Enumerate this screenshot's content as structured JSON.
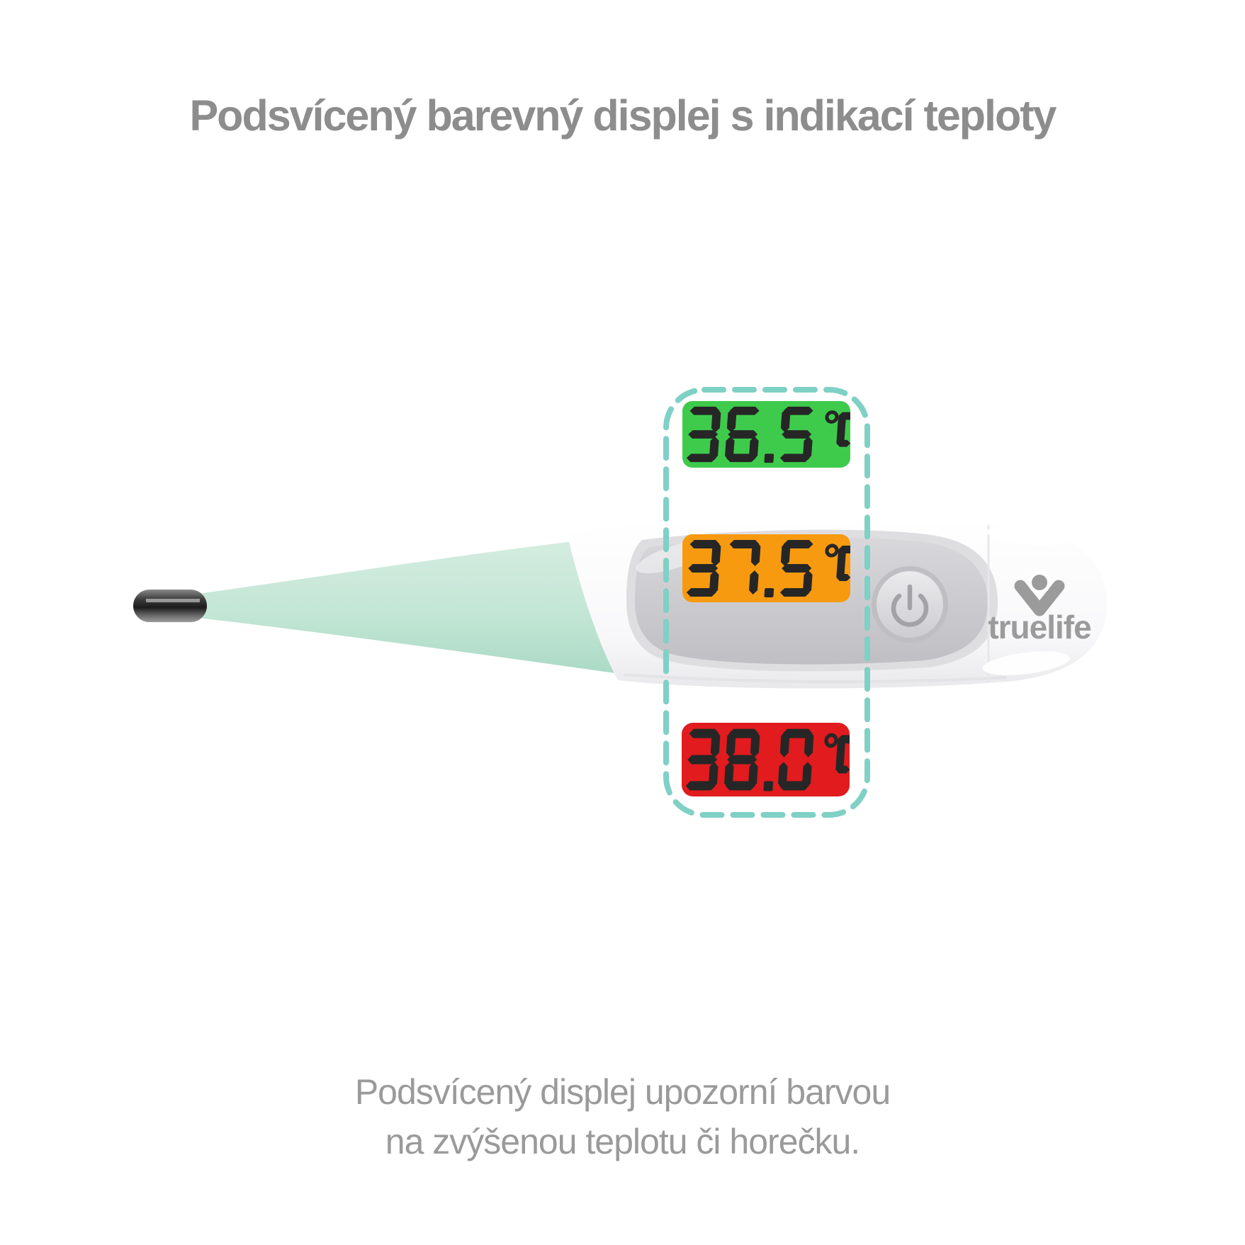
{
  "title": "Podsvícený barevný displej s indikací teploty",
  "caption": {
    "line1": "Podsvícený displej upozorní barvou",
    "line2": "na zvýšenou teplotu či horečku."
  },
  "displays": [
    {
      "name": "normal-temperature",
      "value": "36.5",
      "unit": "°C",
      "color": "#3ecb4c"
    },
    {
      "name": "elevated-temperature",
      "value": "37.5",
      "unit": "°C",
      "color": "#f79a10"
    },
    {
      "name": "fever-temperature",
      "value": "38.0",
      "unit": "°C",
      "color": "#e11b1e"
    }
  ],
  "device": {
    "brand": "truelife"
  },
  "icons": {
    "power": "power-icon",
    "brand": "truelife-logo-icon"
  },
  "colors": {
    "dashed_frame": "#7fd0c5",
    "title_text": "#8d8d8d",
    "caption_text": "#9a9a9a",
    "lcd_digits": "#262626",
    "probe_mint": "#c3e6d5"
  }
}
